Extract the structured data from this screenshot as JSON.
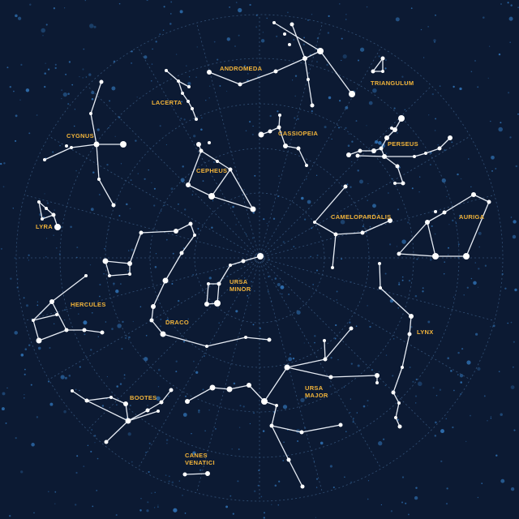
{
  "map": {
    "constellations": [
      {
        "key": "andromeda",
        "label": "ANDROMEDA"
      },
      {
        "key": "triangulum",
        "label": "TRIANGULUM"
      },
      {
        "key": "lacerta",
        "label": "LACERTA"
      },
      {
        "key": "cassiopeia",
        "label": "CASSIOPEIA"
      },
      {
        "key": "cygnus",
        "label": "CYGNUS"
      },
      {
        "key": "perseus",
        "label": "PERSEUS"
      },
      {
        "key": "cepheus",
        "label": "CEPHEUS"
      },
      {
        "key": "lyra",
        "label": "LYRA"
      },
      {
        "key": "camelopardalis",
        "label": "CAMELOPARDALIS"
      },
      {
        "key": "auriga",
        "label": "AURIGA"
      },
      {
        "key": "ursa_minor",
        "label": "URSA\nMINOR"
      },
      {
        "key": "hercules",
        "label": "HERCULES"
      },
      {
        "key": "draco",
        "label": "DRACO"
      },
      {
        "key": "lynx",
        "label": "LYNX"
      },
      {
        "key": "ursa_major",
        "label": "URSA\nMAJOR"
      },
      {
        "key": "bootes",
        "label": "BOOTES"
      },
      {
        "key": "canes_venatici",
        "label": "CANES\nVENATICI"
      }
    ]
  },
  "colors": {
    "background": "#0c1a33",
    "grid": "#3a5a82",
    "label": "#f2b43a",
    "lines": "#e8edf5",
    "background_stars": "#2f6fb0"
  }
}
